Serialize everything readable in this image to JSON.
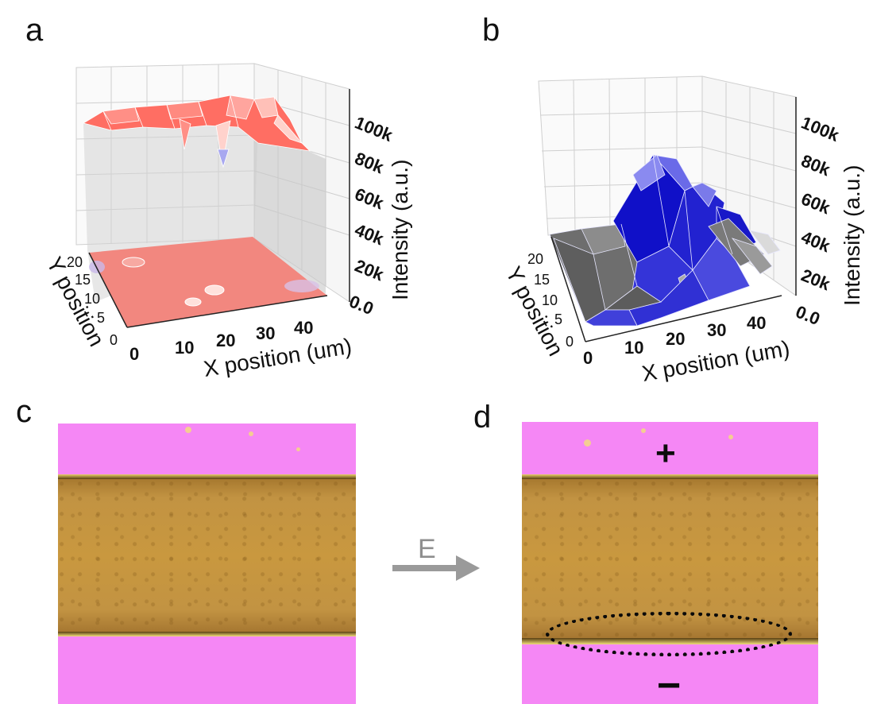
{
  "panels": {
    "a": {
      "letter": "a",
      "colors": {
        "surface": "#ff6e63",
        "surface_light": "#ffd2cc",
        "wall": "#d3d3d3",
        "floor": "#f2877f",
        "dip": "#a8a8f0"
      },
      "z_ticks": [
        "100k",
        "80k",
        "60k",
        "40k",
        "20k",
        "0.0"
      ],
      "x_ticks": [
        "0",
        "10",
        "20",
        "30",
        "40"
      ],
      "y_ticks": [
        "20",
        "15",
        "10",
        "5",
        "0"
      ],
      "x_title": "X position (um)",
      "y_title": "Y position",
      "z_title": "Intensity (a.u.)"
    },
    "b": {
      "letter": "b",
      "colors": {
        "blue_dark": "#1010c8",
        "blue_mid": "#3434d8",
        "blue_light": "#8a8af0",
        "grey": "#6e6e6e",
        "grey_light": "#cfcfcf"
      },
      "z_ticks": [
        "100k",
        "80k",
        "60k",
        "40k",
        "20k",
        "0.0"
      ],
      "x_ticks": [
        "0",
        "10",
        "20",
        "30",
        "40"
      ],
      "y_ticks": [
        "20",
        "15",
        "10",
        "5",
        "0"
      ],
      "x_title": "X position (um)",
      "y_title": "Y position",
      "z_title": "Intensity (a.u.)"
    },
    "c": {
      "letter": "c"
    },
    "d": {
      "letter": "d",
      "plus": "+",
      "minus": "−"
    }
  },
  "arrow": {
    "label": "E",
    "color": "#9a9a9a"
  },
  "micrograph_colors": {
    "pink": "#f587f5",
    "gold": "#c9983f",
    "edge_dark": "#5a3f12"
  }
}
